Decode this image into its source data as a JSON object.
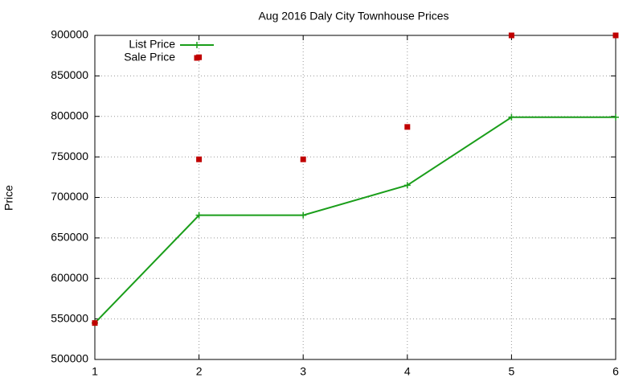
{
  "chart_data": {
    "type": "line",
    "title": "Aug 2016 Daly City Townhouse Prices",
    "ylabel": "Price",
    "xlim": [
      1,
      6
    ],
    "xticks": [
      1,
      2,
      3,
      4,
      5,
      6
    ],
    "ylim": [
      500000,
      900000
    ],
    "yticks": [
      500000,
      550000,
      600000,
      650000,
      700000,
      750000,
      800000,
      850000,
      900000
    ],
    "grid": true,
    "legend": "top-left",
    "series": [
      {
        "name": "List Price",
        "color": "#1a9e1a",
        "line": true,
        "marker": "plus",
        "x": [
          1,
          2,
          3,
          4,
          5,
          6
        ],
        "values": [
          545000,
          678000,
          678000,
          715000,
          799000,
          799000
        ]
      },
      {
        "name": "Sale Price",
        "color": "#c00000",
        "line": false,
        "marker": "square",
        "x": [
          1,
          2,
          2,
          3,
          4,
          5,
          6
        ],
        "values": [
          545000,
          873000,
          747000,
          747000,
          787000,
          900000,
          900000
        ]
      }
    ]
  }
}
